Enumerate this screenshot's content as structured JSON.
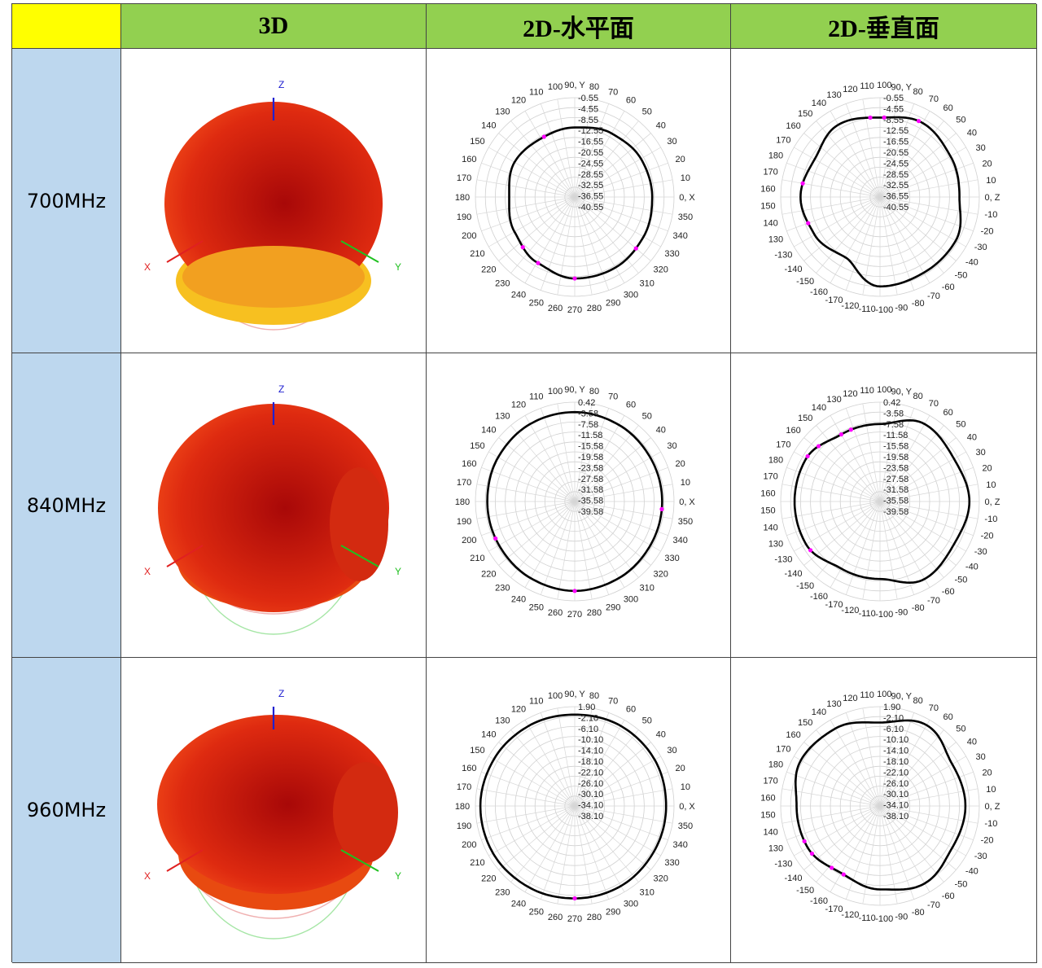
{
  "table": {
    "corner": "",
    "headers": [
      "3D",
      "2D-水平面",
      "2D-垂直面"
    ]
  },
  "axis_names": {
    "x": "X",
    "y": "Y",
    "z": "Z"
  },
  "colors": {
    "header_bg": "#92d050",
    "corner_bg": "#ffff00",
    "rowlabel_bg": "#bdd7ee",
    "trace": "#000000",
    "marker": "#ff00ff",
    "lobe": "#e02a10"
  },
  "rows": [
    {
      "label": "700MHz"
    },
    {
      "label": "840MHz"
    },
    {
      "label": "960MHz"
    }
  ],
  "chart_data": [
    {
      "type": "polar",
      "frequency": "700MHz",
      "plane": "horizontal",
      "angle_labels": [
        "0, X",
        "10",
        "20",
        "30",
        "40",
        "50",
        "60",
        "70",
        "80",
        "90, Y",
        "100",
        "110",
        "120",
        "130",
        "140",
        "150",
        "160",
        "170",
        "180",
        "190",
        "200",
        "210",
        "220",
        "230",
        "240",
        "250",
        "260",
        "270",
        "280",
        "290",
        "300",
        "310",
        "320",
        "330",
        "340",
        "350"
      ],
      "radial_labels": [
        "-0.55",
        "-4.55",
        "-8.55",
        "-12.55",
        "-16.55",
        "-20.55",
        "-24.55",
        "-28.55",
        "-32.55",
        "-36.55",
        "-40.55"
      ],
      "pattern": {
        "angles_deg": [
          0,
          30,
          60,
          90,
          120,
          150,
          180,
          210,
          240,
          270,
          300,
          330
        ],
        "radius_fraction": [
          0.78,
          0.77,
          0.74,
          0.7,
          0.68,
          0.7,
          0.66,
          0.7,
          0.76,
          0.82,
          0.82,
          0.8
        ]
      },
      "markers_deg": [
        117,
        224,
        241,
        270,
        320
      ]
    },
    {
      "type": "polar",
      "frequency": "700MHz",
      "plane": "vertical",
      "angle_labels": [
        "0, Z",
        "10",
        "20",
        "30",
        "40",
        "50",
        "60",
        "70",
        "80",
        "90, Y",
        "100",
        "110",
        "120",
        "130",
        "140",
        "150",
        "160",
        "170",
        "180",
        "170",
        "160",
        "150",
        "140",
        "130",
        "-130",
        "-140",
        "-150",
        "-160",
        "-170",
        "-120",
        "-110",
        "-100",
        "-90",
        "-80",
        "-70",
        "-60",
        "-50",
        "-40",
        "-30",
        "-20",
        "-10"
      ],
      "radial_labels": [
        "-0.55",
        "-4.55",
        "-8.55",
        "-12.55",
        "-16.55",
        "-20.55",
        "-24.55",
        "-28.55",
        "-32.55",
        "-36.55",
        "-40.55"
      ],
      "pattern": {
        "angles_deg": [
          0,
          30,
          60,
          90,
          120,
          150,
          180,
          210,
          240,
          270,
          300,
          330
        ],
        "radius_fraction": [
          0.8,
          0.82,
          0.86,
          0.8,
          0.84,
          0.76,
          0.8,
          0.76,
          0.7,
          0.9,
          0.88,
          0.88
        ]
      },
      "markers_deg": [
        63,
        87,
        97,
        170,
        200
      ]
    },
    {
      "type": "polar",
      "frequency": "840MHz",
      "plane": "horizontal",
      "angle_labels": [
        "0, X",
        "10",
        "20",
        "30",
        "40",
        "50",
        "60",
        "70",
        "80",
        "90, Y",
        "100",
        "110",
        "120",
        "130",
        "140",
        "150",
        "160",
        "170",
        "180",
        "190",
        "200",
        "210",
        "220",
        "230",
        "240",
        "250",
        "260",
        "270",
        "280",
        "290",
        "300",
        "310",
        "320",
        "330",
        "340",
        "350"
      ],
      "radial_labels": [
        "0.42",
        "-3.58",
        "-7.58",
        "-11.58",
        "-15.58",
        "-19.58",
        "-23.58",
        "-27.58",
        "-31.58",
        "-35.58",
        "-39.58"
      ],
      "pattern": {
        "angles_deg": [
          0,
          30,
          60,
          90,
          120,
          150,
          180,
          210,
          240,
          270,
          300,
          330
        ],
        "radius_fraction": [
          0.88,
          0.88,
          0.89,
          0.9,
          0.9,
          0.89,
          0.88,
          0.88,
          0.89,
          0.9,
          0.89,
          0.88
        ]
      },
      "markers_deg": [
        355,
        205,
        270
      ]
    },
    {
      "type": "polar",
      "frequency": "840MHz",
      "plane": "vertical",
      "angle_labels": [
        "0, Z",
        "10",
        "20",
        "30",
        "40",
        "50",
        "60",
        "70",
        "80",
        "90, Y",
        "100",
        "110",
        "120",
        "130",
        "140",
        "150",
        "160",
        "170",
        "180",
        "170",
        "160",
        "150",
        "140",
        "130",
        "-130",
        "-140",
        "-150",
        "-160",
        "-170",
        "-120",
        "-110",
        "-100",
        "-90",
        "-80",
        "-70",
        "-60",
        "-50",
        "-40",
        "-30",
        "-20",
        "-10"
      ],
      "radial_labels": [
        "0.42",
        "-3.58",
        "-7.58",
        "-11.58",
        "-15.58",
        "-19.58",
        "-23.58",
        "-27.58",
        "-31.58",
        "-35.58",
        "-39.58"
      ],
      "pattern": {
        "angles_deg": [
          0,
          30,
          60,
          90,
          120,
          150,
          180,
          210,
          240,
          270,
          300,
          330
        ],
        "radius_fraction": [
          0.9,
          0.86,
          0.9,
          0.78,
          0.78,
          0.86,
          0.86,
          0.86,
          0.78,
          0.78,
          0.9,
          0.86
        ]
      },
      "markers_deg": [
        112,
        120,
        138,
        148,
        215
      ]
    },
    {
      "type": "polar",
      "frequency": "960MHz",
      "plane": "horizontal",
      "angle_labels": [
        "0, X",
        "10",
        "20",
        "30",
        "40",
        "50",
        "60",
        "70",
        "80",
        "90, Y",
        "100",
        "110",
        "120",
        "130",
        "140",
        "150",
        "160",
        "170",
        "180",
        "190",
        "200",
        "210",
        "220",
        "230",
        "240",
        "250",
        "260",
        "270",
        "280",
        "290",
        "300",
        "310",
        "320",
        "330",
        "340",
        "350"
      ],
      "radial_labels": [
        "1.90",
        "-2.10",
        "-6.10",
        "-10.10",
        "-14.10",
        "-18.10",
        "-22.10",
        "-26.10",
        "-30.10",
        "-34.10",
        "-38.10"
      ],
      "pattern": {
        "angles_deg": [
          0,
          30,
          60,
          90,
          120,
          150,
          180,
          210,
          240,
          270,
          300,
          330
        ],
        "radius_fraction": [
          0.92,
          0.93,
          0.93,
          0.92,
          0.93,
          0.94,
          0.95,
          0.95,
          0.94,
          0.93,
          0.93,
          0.92
        ]
      },
      "markers_deg": [
        270
      ]
    },
    {
      "type": "polar",
      "frequency": "960MHz",
      "plane": "vertical",
      "angle_labels": [
        "0, Z",
        "10",
        "20",
        "30",
        "40",
        "50",
        "60",
        "70",
        "80",
        "90, Y",
        "100",
        "110",
        "120",
        "130",
        "140",
        "150",
        "160",
        "170",
        "180",
        "170",
        "160",
        "150",
        "140",
        "130",
        "-130",
        "-140",
        "-150",
        "-160",
        "-170",
        "-120",
        "-110",
        "-100",
        "-90",
        "-80",
        "-70",
        "-60",
        "-50",
        "-40",
        "-30",
        "-20",
        "-10"
      ],
      "radial_labels": [
        "1.90",
        "-2.10",
        "-6.10",
        "-10.10",
        "-14.10",
        "-18.10",
        "-22.10",
        "-26.10",
        "-30.10",
        "-34.10",
        "-38.10"
      ],
      "pattern": {
        "angles_deg": [
          0,
          30,
          60,
          90,
          120,
          150,
          180,
          210,
          240,
          270,
          300,
          330
        ],
        "radius_fraction": [
          0.86,
          0.84,
          0.94,
          0.84,
          0.9,
          0.92,
          0.84,
          0.84,
          0.78,
          0.84,
          0.9,
          0.84
        ]
      },
      "markers_deg": [
        205,
        215,
        232,
        242
      ]
    }
  ]
}
